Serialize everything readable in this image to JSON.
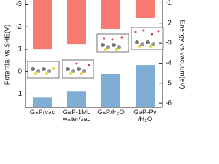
{
  "chart_data": {
    "type": "bar",
    "y_label": "Potential vs SHE(V)",
    "y2_label": "Energy vs vacuum(eV)",
    "categories": [
      "GaP/vac",
      "GaP-1ML\nwater/vac",
      "GaP/H₂O",
      "GaP-Py\n/H₂O"
    ],
    "ylim": [
      1.6,
      -3.2
    ],
    "yticks": [
      -3,
      -2,
      -1,
      0,
      1
    ],
    "y2lim": [
      -6.2,
      -0.85
    ],
    "y2ticks": [
      -1,
      -2,
      -3,
      -4,
      -5,
      -6
    ],
    "series": [
      {
        "color": "#f77b72",
        "axis": "y2",
        "from": "top",
        "values": [
          -3.31,
          -3.07,
          -2.28,
          -1.77
        ]
      },
      {
        "color": "#7fadd6",
        "axis": "y2",
        "from": "bottom",
        "values": [
          -5.7,
          -5.39,
          -4.54,
          -4.09
        ]
      }
    ]
  }
}
